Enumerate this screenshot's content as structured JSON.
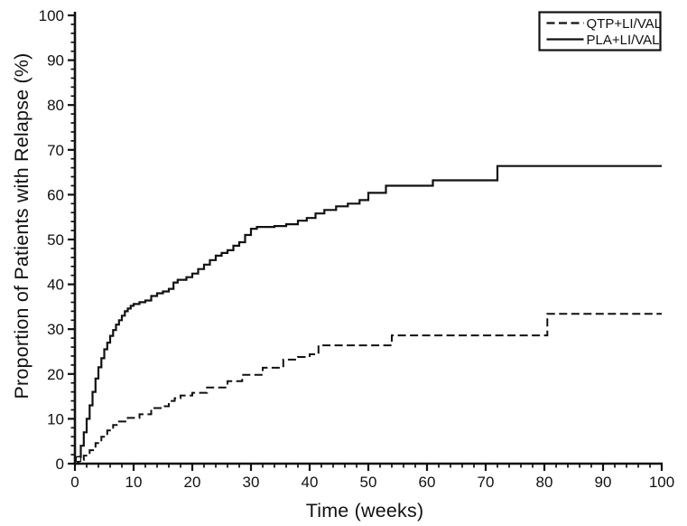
{
  "figure": {
    "background": "#ffffff",
    "line_color": "#111111",
    "axis_color": "#111111"
  },
  "chart_data": {
    "type": "line",
    "subtype": "kaplan-meier-step",
    "title": "",
    "xlabel": "Time (weeks)",
    "ylabel": "Proportion of Patients with Relapse (%)",
    "xlim": [
      0,
      100
    ],
    "ylim": [
      0,
      100
    ],
    "x_ticks": [
      0,
      10,
      20,
      30,
      40,
      50,
      60,
      70,
      80,
      90,
      100
    ],
    "y_ticks": [
      0,
      10,
      20,
      30,
      40,
      50,
      60,
      70,
      80,
      90,
      100
    ],
    "x_minor_step": 2,
    "y_minor_step": 2,
    "grid": false,
    "legend": {
      "position": "top-right",
      "entries": [
        {
          "label": "QTP+LI/VAL",
          "style": "dashed"
        },
        {
          "label": "PLA+LI/VAL",
          "style": "solid"
        }
      ]
    },
    "series": [
      {
        "name": "QTP+LI/VAL",
        "style": "dashed",
        "points": [
          [
            0,
            0
          ],
          [
            0.7,
            0.8
          ],
          [
            1.5,
            1.8
          ],
          [
            2.5,
            3
          ],
          [
            3.5,
            4.6
          ],
          [
            4.5,
            6
          ],
          [
            5.5,
            7.4
          ],
          [
            6.5,
            8.6
          ],
          [
            7.5,
            9.4
          ],
          [
            9,
            10.2
          ],
          [
            11,
            11
          ],
          [
            13,
            12.4
          ],
          [
            15,
            12.8
          ],
          [
            16,
            14
          ],
          [
            17,
            14.6
          ],
          [
            18,
            15.2
          ],
          [
            20,
            15.8
          ],
          [
            22.5,
            17
          ],
          [
            26,
            18.4
          ],
          [
            28.5,
            19.8
          ],
          [
            32,
            21.4
          ],
          [
            35.5,
            23.2
          ],
          [
            38,
            23.8
          ],
          [
            40,
            24.4
          ],
          [
            41.5,
            26.4
          ],
          [
            54,
            28.6
          ],
          [
            80.5,
            33.4
          ],
          [
            100,
            33.4
          ]
        ]
      },
      {
        "name": "PLA+LI/VAL",
        "style": "solid",
        "points": [
          [
            0,
            0
          ],
          [
            0.5,
            1.5
          ],
          [
            1,
            4
          ],
          [
            1.5,
            7
          ],
          [
            2,
            10
          ],
          [
            2.5,
            13
          ],
          [
            3,
            16
          ],
          [
            3.5,
            19
          ],
          [
            4,
            21.5
          ],
          [
            4.5,
            23.5
          ],
          [
            5,
            25.5
          ],
          [
            5.5,
            27
          ],
          [
            6,
            28.5
          ],
          [
            6.5,
            29.8
          ],
          [
            7,
            31
          ],
          [
            7.5,
            32
          ],
          [
            8,
            33
          ],
          [
            8.5,
            34
          ],
          [
            9,
            34.6
          ],
          [
            9.5,
            35.2
          ],
          [
            10,
            35.6
          ],
          [
            11,
            36
          ],
          [
            12,
            36.4
          ],
          [
            13,
            37.4
          ],
          [
            14,
            38
          ],
          [
            15,
            38.4
          ],
          [
            16,
            39
          ],
          [
            16.8,
            40.4
          ],
          [
            17.5,
            41
          ],
          [
            19,
            41.6
          ],
          [
            20,
            42.4
          ],
          [
            21,
            43.4
          ],
          [
            22,
            44.4
          ],
          [
            23,
            45.4
          ],
          [
            24,
            46.4
          ],
          [
            25,
            47
          ],
          [
            26,
            47.6
          ],
          [
            27,
            48.6
          ],
          [
            28,
            49.4
          ],
          [
            29,
            51
          ],
          [
            30,
            52.4
          ],
          [
            31,
            52.8
          ],
          [
            34,
            53
          ],
          [
            36,
            53.4
          ],
          [
            38,
            54.2
          ],
          [
            39.5,
            54.8
          ],
          [
            41,
            55.8
          ],
          [
            42.5,
            56.6
          ],
          [
            44.5,
            57.4
          ],
          [
            46.5,
            58
          ],
          [
            48.5,
            58.8
          ],
          [
            50,
            60.4
          ],
          [
            53,
            62
          ],
          [
            61,
            63.2
          ],
          [
            72,
            66.4
          ],
          [
            100,
            66.4
          ]
        ]
      }
    ],
    "annotations": [
      {
        "type": "open-square-marker",
        "week": 0.6,
        "value": 1.0
      }
    ]
  }
}
